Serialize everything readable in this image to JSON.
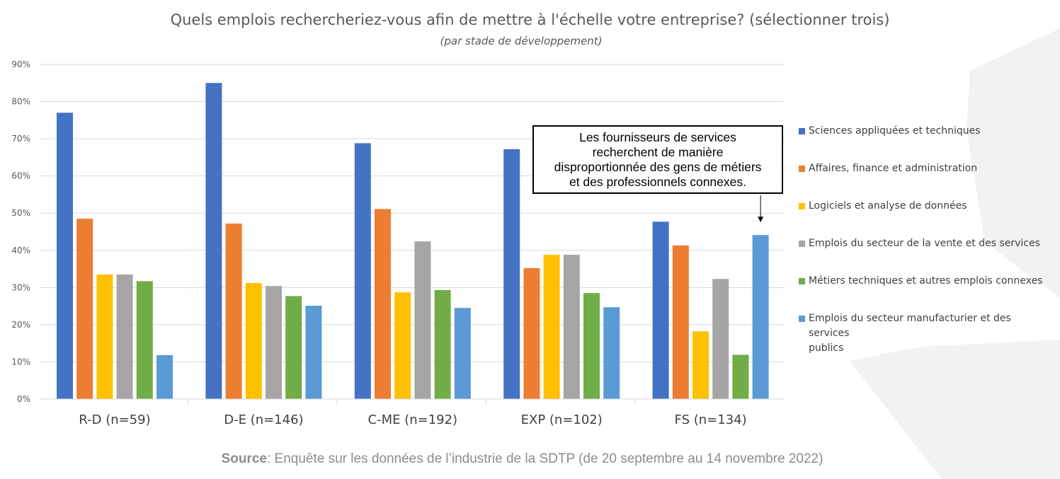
{
  "chart_data": {
    "type": "bar",
    "title": "Quels emplois rechercheriez-vous  afin de mettre à l'échelle votre entreprise? (sélectionner  trois)",
    "subtitle": "(par stade de développement)",
    "xlabel": "",
    "ylabel": "",
    "ylim": [
      0,
      90
    ],
    "yticks": [
      "0%",
      "10%",
      "20%",
      "30%",
      "40%",
      "50%",
      "60%",
      "70%",
      "80%",
      "90%"
    ],
    "ytick_values": [
      0,
      10,
      20,
      30,
      40,
      50,
      60,
      70,
      80,
      90
    ],
    "grid": true,
    "legend_position": "right",
    "categories": [
      "R-D (n=59)",
      "D-E (n=146)",
      "C-ME (n=192)",
      "EXP (n=102)",
      "FS (n=134)"
    ],
    "series": [
      {
        "name": "Sciences appliquées et techniques",
        "color": "#4472C4",
        "values": [
          77.0,
          85.0,
          68.8,
          67.2,
          47.7
        ]
      },
      {
        "name": "Affaires, finance et administration",
        "color": "#ED7D31",
        "values": [
          48.5,
          47.2,
          51.1,
          35.2,
          41.3
        ]
      },
      {
        "name": "Logiciels et analyse de données",
        "color": "#FFC000",
        "values": [
          33.5,
          31.2,
          28.7,
          38.8,
          18.2
        ]
      },
      {
        "name": "Emplois du secteur de la vente et des services",
        "color": "#A5A5A5",
        "values": [
          33.5,
          30.4,
          42.4,
          38.8,
          32.3
        ]
      },
      {
        "name": "Métiers techniques et autres emplois connexes",
        "color": "#70AD47",
        "values": [
          31.7,
          27.7,
          29.3,
          28.5,
          11.9
        ]
      },
      {
        "name": "Emplois du secteur manufacturier et des services publics",
        "color": "#5B9BD5",
        "values": [
          11.8,
          25.1,
          24.5,
          24.7,
          44.1
        ]
      }
    ],
    "annotations": [
      {
        "text": "Les fournisseurs de services recherchent de manière disproportionnée des gens de métiers et des professionnels connexes.",
        "points_to": {
          "category": "FS (n=134)",
          "series": "Emplois du secteur manufacturier et des services publics"
        }
      }
    ]
  },
  "legend_lines": [
    [
      "Sciences appliquées et techniques"
    ],
    [
      "Affaires, finance et administration"
    ],
    [
      "Logiciels et analyse de données"
    ],
    [
      "Emplois du secteur de la vente et des services"
    ],
    [
      "Métiers techniques et autres emplois connexes"
    ],
    [
      "Emplois du secteur manufacturier et des services",
      "publics"
    ]
  ],
  "callout_lines": [
    "Les fournisseurs de services",
    "recherchent de manière",
    "disproportionnée des gens de métiers",
    "et des professionnels connexes."
  ],
  "source": {
    "label": "Source",
    "text": ": Enquête sur les données de l’industrie de la SDTP (de 20 septembre au 14 novembre 2022)"
  }
}
